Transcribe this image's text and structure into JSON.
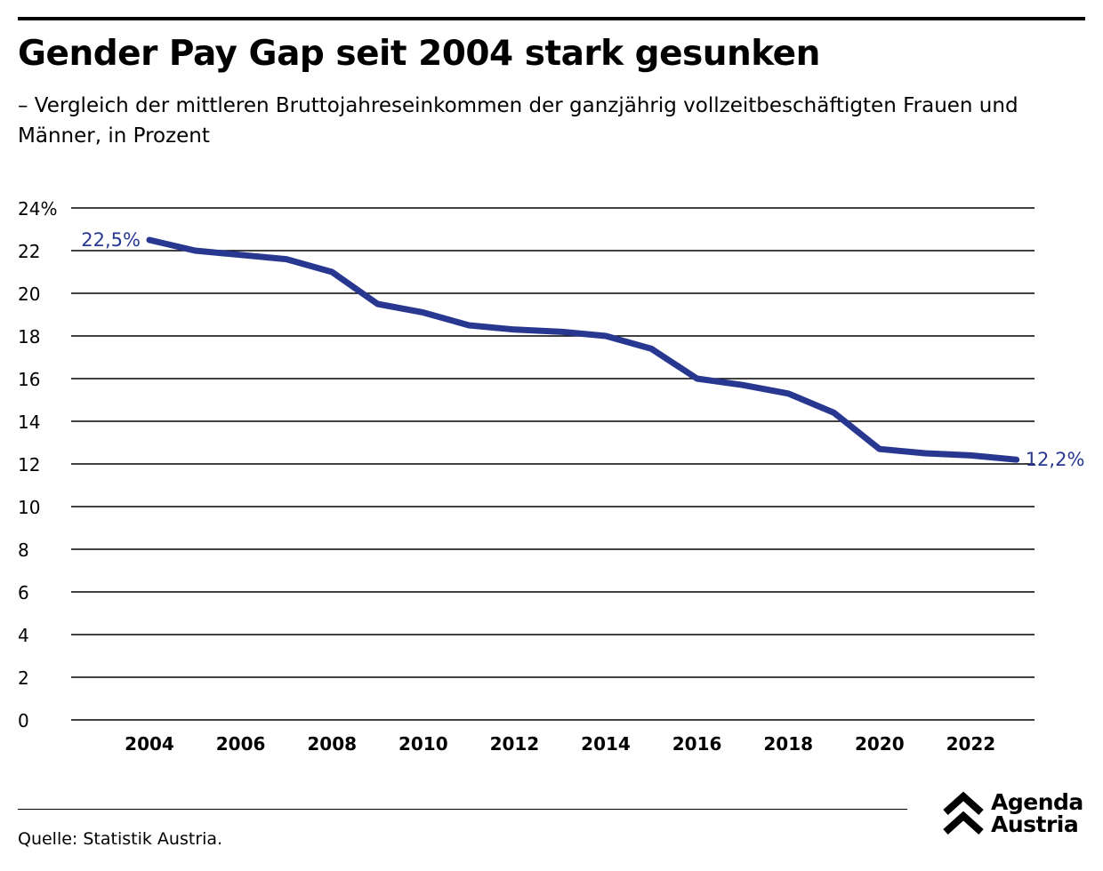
{
  "header": {
    "title": "Gender Pay Gap seit 2004 stark gesunken",
    "subtitle": "– Vergleich der mittleren Bruttojahreseinkommen der ganzjährig vollzeitbeschäftigten Frauen und Männer, in Prozent"
  },
  "footer": {
    "source": "Quelle: Statistik Austria.",
    "logo_line1": "Agenda",
    "logo_line2": "Austria"
  },
  "colors": {
    "line": "#283891",
    "grid": "#000000"
  },
  "chart_data": {
    "type": "line",
    "title": "Gender Pay Gap seit 2004 stark gesunken",
    "xlabel": "",
    "ylabel": "",
    "ylim": [
      0,
      24
    ],
    "xlim": [
      2003,
      2023.4
    ],
    "yticks": [
      0,
      2,
      4,
      6,
      8,
      10,
      12,
      14,
      16,
      18,
      20,
      22,
      24
    ],
    "ytick_labels": [
      "0",
      "2",
      "4",
      "6",
      "8",
      "10",
      "12",
      "14",
      "16",
      "18",
      "20",
      "22",
      "24%"
    ],
    "xticks": [
      2004,
      2006,
      2008,
      2010,
      2012,
      2014,
      2016,
      2018,
      2020,
      2022
    ],
    "xtick_labels": [
      "2004",
      "2006",
      "2008",
      "2010",
      "2012",
      "2014",
      "2016",
      "2018",
      "2020",
      "2022"
    ],
    "grid": true,
    "series": [
      {
        "name": "Gender Pay Gap",
        "x": [
          2004,
          2005,
          2006,
          2007,
          2008,
          2009,
          2010,
          2011,
          2012,
          2013,
          2014,
          2015,
          2016,
          2017,
          2018,
          2019,
          2020,
          2021,
          2022,
          2023
        ],
        "values": [
          22.5,
          22.0,
          21.8,
          21.6,
          21.0,
          19.5,
          19.1,
          18.5,
          18.3,
          18.2,
          18.0,
          17.4,
          16.0,
          15.7,
          15.3,
          14.4,
          12.7,
          12.5,
          12.4,
          12.2
        ]
      }
    ],
    "annotations": [
      {
        "x": 2004,
        "y": 22.5,
        "text": "22,5%"
      },
      {
        "x": 2023,
        "y": 12.2,
        "text": "12,2%"
      }
    ]
  }
}
